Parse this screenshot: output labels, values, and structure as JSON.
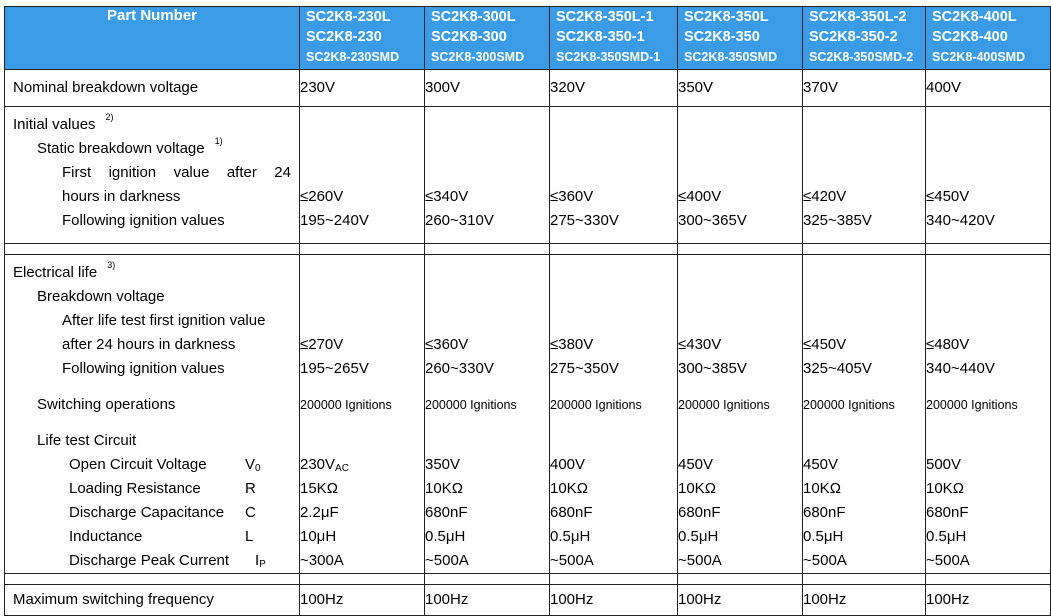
{
  "header": {
    "part_number_label": "Part Number",
    "models": [
      {
        "line1": "SC2K8-230L",
        "line2": "SC2K8-230",
        "line3": "SC2K8-230SMD"
      },
      {
        "line1": "SC2K8-300L",
        "line2": "SC2K8-300",
        "line3": "SC2K8-300SMD"
      },
      {
        "line1": "SC2K8-350L-1",
        "line2": "SC2K8-350-1",
        "line3": "SC2K8-350SMD-1"
      },
      {
        "line1": "SC2K8-350L",
        "line2": "SC2K8-350",
        "line3": "SC2K8-350SMD"
      },
      {
        "line1": "SC2K8-350L-2",
        "line2": "SC2K8-350-2",
        "line3": "SC2K8-350SMD-2"
      },
      {
        "line1": "SC2K8-400L",
        "line2": "SC2K8-400",
        "line3": "SC2K8-400SMD"
      }
    ]
  },
  "nominal": {
    "label": "Nominal breakdown voltage",
    "values": [
      "230V",
      "300V",
      "320V",
      "350V",
      "370V",
      "400V"
    ]
  },
  "initial": {
    "label": "Initial values",
    "note": "2)",
    "static_label": "Static breakdown voltage",
    "static_note": "1)",
    "first_words": [
      "First",
      "ignition",
      "value",
      "after",
      "24"
    ],
    "first_line2": "hours in darkness",
    "following_label": "Following ignition values",
    "first_values": [
      "≤260V",
      "≤340V",
      "≤360V",
      "≤400V",
      "≤420V",
      "≤450V"
    ],
    "following_values": [
      "195~240V",
      "260~310V",
      "275~330V",
      "300~365V",
      "325~385V",
      "340~420V"
    ]
  },
  "life": {
    "label": "Electrical life",
    "note": "3)",
    "breakdown_label": "Breakdown voltage",
    "after_line1": "After life test first ignition value",
    "after_line2": "after 24 hours in darkness",
    "following_label": "Following ignition values",
    "after_values": [
      "≤270V",
      "≤360V",
      "≤380V",
      "≤430V",
      "≤450V",
      "≤480V"
    ],
    "following_values": [
      "195~265V",
      "260~330V",
      "275~350V",
      "300~385V",
      "325~405V",
      "340~440V"
    ],
    "switching_label": "Switching operations",
    "switching_values": [
      "200000 Ignitions",
      "200000 Ignitions",
      "200000 Ignitions",
      "200000 Ignitions",
      "200000 Ignitions",
      "200000 Ignitions"
    ],
    "circuit_label": "Life test Circuit",
    "circuit": {
      "ocv_label": "Open Circuit Voltage",
      "ocv_sym": "V",
      "ocv_sym_sub": "0",
      "ocv_values": [
        "230V",
        "350V",
        "400V",
        "450V",
        "450V",
        "500V"
      ],
      "ocv_first_sub": "AC",
      "res_label": "Loading Resistance",
      "res_sym": "R",
      "res_values": [
        "15KΩ",
        "10KΩ",
        "10KΩ",
        "10KΩ",
        "10KΩ",
        "10KΩ"
      ],
      "cap_label": "Discharge Capacitance",
      "cap_sym": "C",
      "cap_values": [
        "2.2μF",
        "680nF",
        "680nF",
        "680nF",
        "680nF",
        "680nF"
      ],
      "ind_label": "Inductance",
      "ind_sym": "L",
      "ind_values": [
        "10μH",
        "0.5μH",
        "0.5μH",
        "0.5μH",
        "0.5μH",
        "0.5μH"
      ],
      "peak_label": "Discharge Peak Current",
      "peak_sym": "I",
      "peak_sym_sub": "P",
      "peak_values": [
        "~300A",
        "~500A",
        "~500A",
        "~500A",
        "~500A",
        "~500A"
      ]
    }
  },
  "maxfreq": {
    "label": "Maximum switching frequency",
    "values": [
      "100Hz",
      "100Hz",
      "100Hz",
      "100Hz",
      "100Hz",
      "100Hz"
    ]
  }
}
